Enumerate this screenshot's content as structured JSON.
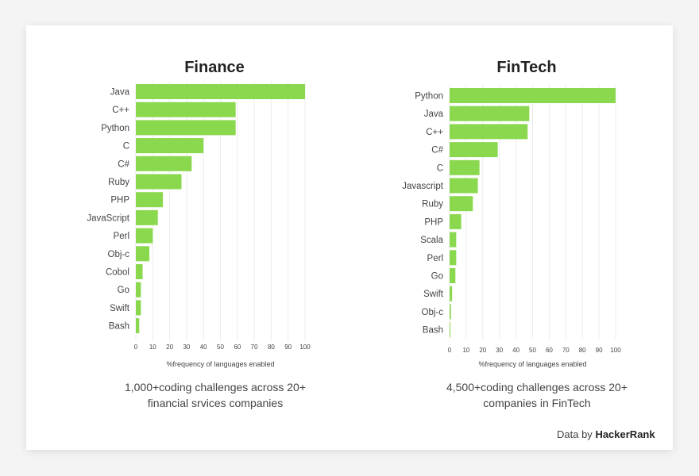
{
  "credit": {
    "prefix": "Data by",
    "brand": "HackerRank"
  },
  "chart_data": [
    {
      "type": "bar",
      "orientation": "horizontal",
      "title": "Finance",
      "categories": [
        "Java",
        "C++",
        "Python",
        "C",
        "C#",
        "Ruby",
        "PHP",
        "JavaScript",
        "Perl",
        "Obj-c",
        "Cobol",
        "Go",
        "Swift",
        "Bash"
      ],
      "values": [
        100,
        59,
        59,
        40,
        33,
        27,
        16,
        13,
        10,
        8,
        4,
        3,
        3,
        2
      ],
      "xlabel": "%frequency of languages enabled",
      "xlim": [
        0,
        100
      ],
      "xticks": [
        "0",
        "10",
        "20",
        "30",
        "40",
        "50",
        "60",
        "70",
        "80",
        "90",
        "100"
      ],
      "grid": true,
      "bar_color": "#8ad84e",
      "caption": [
        "1,000+coding challenges across 20+",
        "financial srvices companies"
      ]
    },
    {
      "type": "bar",
      "orientation": "horizontal",
      "title": "FinTech",
      "categories": [
        "Python",
        "Java",
        "C++",
        "C#",
        "C",
        "Javascript",
        "Ruby",
        "PHP",
        "Scala",
        "Perl",
        "Go",
        "Swift",
        "Obj-c",
        "Bash"
      ],
      "values": [
        100,
        48,
        47,
        29,
        18,
        17,
        14,
        7,
        4,
        4,
        3.5,
        1.5,
        0.8,
        0.4
      ],
      "xlabel": "%frequency of languages enabled",
      "xlim": [
        0,
        100
      ],
      "xticks": [
        "0",
        "10",
        "20",
        "30",
        "40",
        "50",
        "60",
        "70",
        "80",
        "90",
        "100"
      ],
      "grid": true,
      "bar_color": "#8ad84e",
      "caption": [
        "4,500+coding challenges across 20+",
        "companies in FinTech"
      ]
    }
  ]
}
